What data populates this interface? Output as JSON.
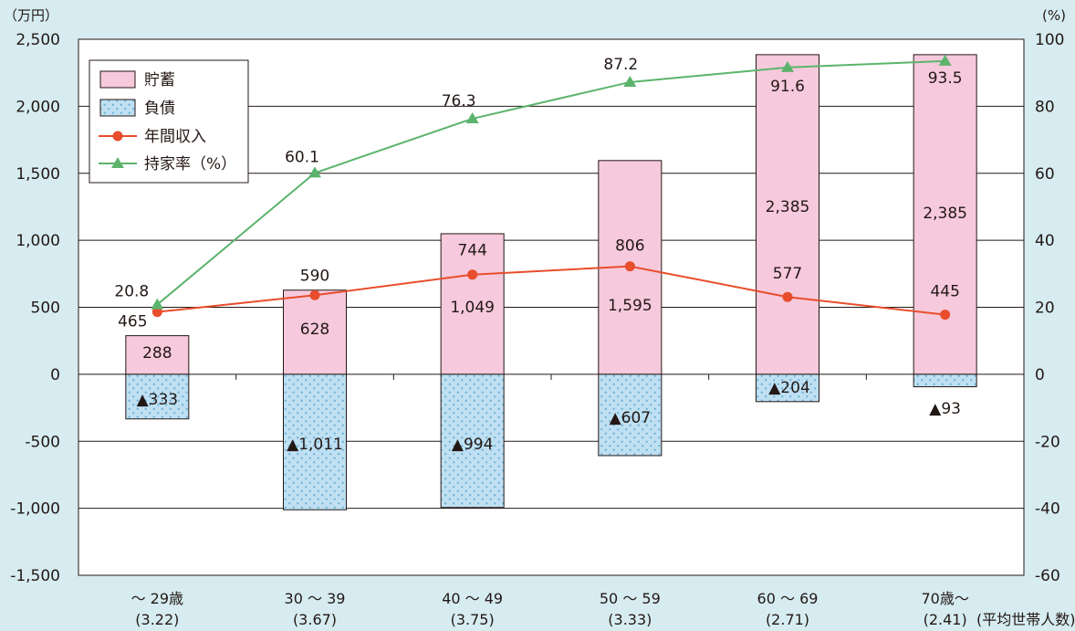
{
  "chart_data": {
    "type": "bar",
    "units": {
      "left": "（万円）",
      "right": "(%)"
    },
    "categories": [
      "～ 29歳",
      "30 ～ 39",
      "40 ～ 49",
      "50 ～ 59",
      "60 ～ 69",
      "70歳～"
    ],
    "household_size": [
      "(3.22)",
      "(3.67)",
      "(3.75)",
      "(3.33)",
      "(2.71)",
      "(2.41)"
    ],
    "household_size_label": "(平均世帯人数)",
    "y_left_ticks": [
      "2,500",
      "2,000",
      "1,500",
      "1,000",
      "500",
      "0",
      "-500",
      "-1,000",
      "-1,500"
    ],
    "y_right_ticks": [
      "100",
      "80",
      "60",
      "40",
      "20",
      "0",
      "-20",
      "-40",
      "-60"
    ],
    "ylim_left": [
      -1500,
      2500
    ],
    "ylim_right": [
      -60,
      100
    ],
    "grid": true,
    "legend_position": "top-left",
    "series": [
      {
        "name": "貯蓄",
        "kind": "bar",
        "axis": "left",
        "color": "#f6c9dc",
        "values": [
          288,
          628,
          1049,
          1595,
          2385,
          2385
        ],
        "labels": [
          "288",
          "628",
          "1,049",
          "1,595",
          "2,385",
          "2,385"
        ]
      },
      {
        "name": "負債",
        "kind": "bar",
        "axis": "left",
        "color": "#bfe0f2",
        "values": [
          -333,
          -1011,
          -994,
          -607,
          -204,
          -93
        ],
        "labels": [
          "▲333",
          "▲1,011",
          "▲994",
          "▲607",
          "▲204",
          "▲93"
        ]
      },
      {
        "name": "年間収入",
        "kind": "line",
        "axis": "left",
        "color": "#e84d2c",
        "values": [
          465,
          590,
          744,
          806,
          577,
          445
        ],
        "labels": [
          "465",
          "590",
          "744",
          "806",
          "577",
          "445"
        ]
      },
      {
        "name": "持家率（%）",
        "kind": "line",
        "axis": "right",
        "color": "#5cb46c",
        "values": [
          20.8,
          60.1,
          76.3,
          87.2,
          91.6,
          93.5
        ],
        "labels": [
          "20.8",
          "60.1",
          "76.3",
          "87.2",
          "91.6",
          "93.5"
        ]
      }
    ]
  }
}
